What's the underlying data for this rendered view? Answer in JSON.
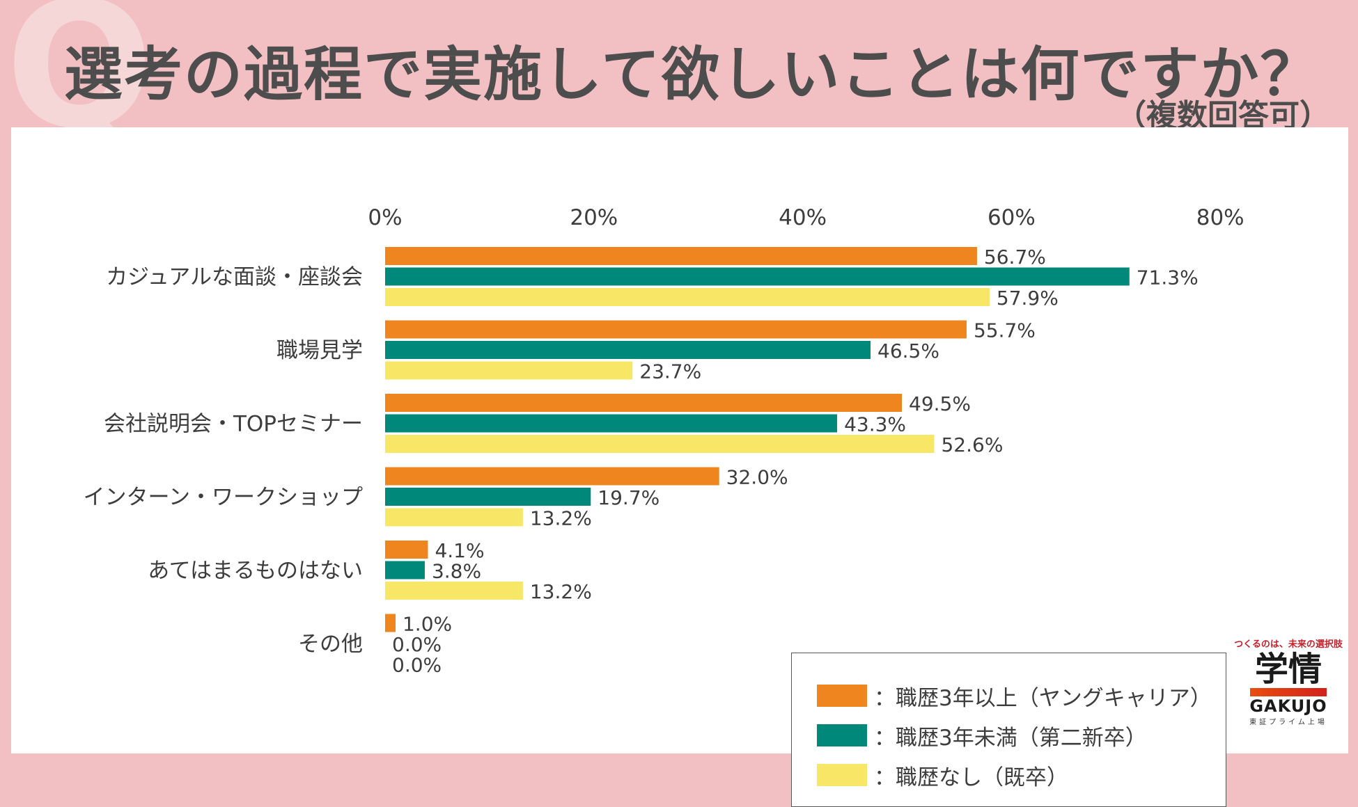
{
  "header": {
    "q_mark": "Q",
    "title": "選考の過程で実施して欲しいことは何ですか？",
    "subtitle": "（複数回答可）"
  },
  "chart_data": {
    "type": "bar",
    "orientation": "horizontal",
    "categories": [
      "カジュアルな面談・座談会",
      "職場見学",
      "会社説明会・TOPセミナー",
      "インターン・ワークショップ",
      "あてはまるものはない",
      "その他"
    ],
    "series": [
      {
        "name": "：職歴3年以上（ヤングキャリア）",
        "color": "#ee851f",
        "values": [
          56.7,
          55.7,
          49.5,
          32.0,
          4.1,
          1.0
        ],
        "labels": [
          "56.7%",
          "55.7%",
          "49.5%",
          "32.0%",
          "4.1%",
          "1.0%"
        ]
      },
      {
        "name": "：職歴3年未満（第二新卒）",
        "color": "#00897a",
        "values": [
          71.3,
          46.5,
          43.3,
          19.7,
          3.8,
          0.0
        ],
        "labels": [
          "71.3%",
          "46.5%",
          "43.3%",
          "19.7%",
          "3.8%",
          "0.0%"
        ]
      },
      {
        "name": "：職歴なし（既卒）",
        "color": "#f8e766",
        "values": [
          57.9,
          23.7,
          52.6,
          13.2,
          13.2,
          0.0
        ],
        "labels": [
          "57.9%",
          "23.7%",
          "52.6%",
          "13.2%",
          "13.2%",
          "0.0%"
        ]
      }
    ],
    "xlim": [
      0,
      80
    ],
    "ticks": [
      0,
      20,
      40,
      60,
      80
    ],
    "tick_labels": [
      "0%",
      "20%",
      "40%",
      "60%",
      "80%"
    ],
    "axis_position": "top",
    "grid": false,
    "legend_position": "bottom-right"
  },
  "brand": {
    "tagline": "つくるのは、未来の選択肢",
    "logo": "学情",
    "logo_en": "GAKUJO",
    "sub": "東証プライム上場"
  }
}
